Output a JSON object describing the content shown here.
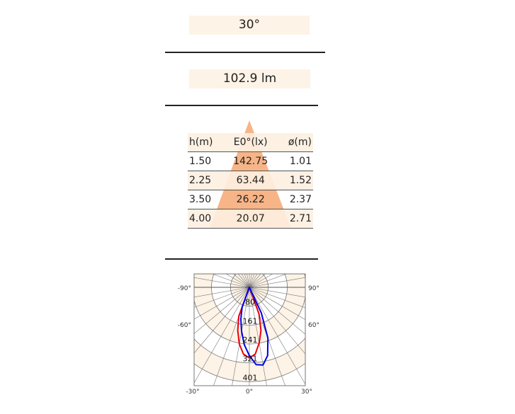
{
  "beam_angle": "30°",
  "luminous_flux": "102.9 lm",
  "table": {
    "headers": [
      "h(m)",
      "E0°(lx)",
      "ø(m)"
    ],
    "rows": [
      [
        "1.50",
        "142.75",
        "1.01"
      ],
      [
        "2.25",
        "63.44",
        "1.52"
      ],
      [
        "3.50",
        "26.22",
        "2.37"
      ],
      [
        "4.00",
        "20.07",
        "2.71"
      ]
    ]
  },
  "colors": {
    "band": "#fdf3e6",
    "triangle": "#f7b487",
    "c0": "#e8000b",
    "c90": "#0000e0"
  },
  "chart_data": {
    "type": "polar",
    "rings": [
      80,
      161,
      241,
      321,
      401
    ],
    "angle_labels_left": [
      "-90°",
      "-60°",
      "-30°"
    ],
    "angle_labels_right": [
      "90°",
      "60°",
      "30°"
    ],
    "angle_label_bottom": "0°",
    "series": [
      {
        "color": "#e8000b",
        "points": [
          [
            -25,
            0
          ],
          [
            -20,
            130
          ],
          [
            -15,
            190
          ],
          [
            -10,
            245
          ],
          [
            -5,
            285
          ],
          [
            0,
            300
          ],
          [
            5,
            285
          ],
          [
            10,
            240
          ],
          [
            15,
            190
          ],
          [
            20,
            120
          ],
          [
            25,
            0
          ]
        ]
      },
      {
        "color": "#0000e0",
        "points": [
          [
            -22,
            0
          ],
          [
            -20,
            90
          ],
          [
            -15,
            140
          ],
          [
            -10,
            190
          ],
          [
            -5,
            245
          ],
          [
            0,
            290
          ],
          [
            5,
            330
          ],
          [
            10,
            335
          ],
          [
            15,
            300
          ],
          [
            20,
            230
          ],
          [
            25,
            120
          ],
          [
            30,
            0
          ]
        ]
      }
    ]
  }
}
